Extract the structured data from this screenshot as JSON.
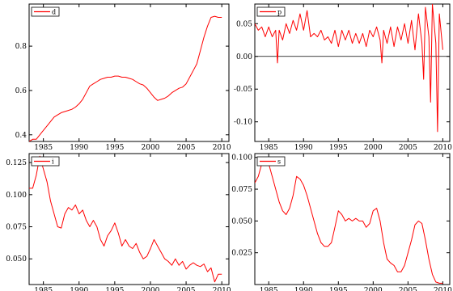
{
  "chart_data": [
    {
      "type": "line",
      "legend": "d",
      "xlim": [
        1983,
        2011
      ],
      "ylim": [
        0.37,
        0.99
      ],
      "xticks": [
        1985,
        1990,
        1995,
        2000,
        2005,
        2010
      ],
      "xtick_labels": [
        "1985",
        "1990",
        "1995",
        "2000",
        "2005",
        "2010"
      ],
      "yticks": [
        0.4,
        0.6,
        0.8
      ],
      "ytick_labels": [
        "0.4",
        "0.6",
        "0.8"
      ],
      "zero_line": false,
      "series": [
        {
          "x": [
            1983.0,
            1983.5,
            1984.0,
            1984.5,
            1985.0,
            1985.5,
            1986.0,
            1986.5,
            1987.0,
            1987.5,
            1988.0,
            1988.5,
            1989.0,
            1989.5,
            1990.0,
            1990.5,
            1991.0,
            1991.5,
            1992.0,
            1992.5,
            1993.0,
            1993.5,
            1994.0,
            1994.5,
            1995.0,
            1995.5,
            1996.0,
            1996.5,
            1997.0,
            1997.5,
            1998.0,
            1998.5,
            1999.0,
            1999.5,
            2000.0,
            2000.5,
            2001.0,
            2001.5,
            2002.0,
            2002.5,
            2003.0,
            2003.5,
            2004.0,
            2004.5,
            2005.0,
            2005.5,
            2006.0,
            2006.5,
            2007.0,
            2007.5,
            2008.0,
            2008.5,
            2009.0,
            2009.5,
            2010.0
          ],
          "y": [
            0.37,
            0.38,
            0.38,
            0.4,
            0.42,
            0.44,
            0.46,
            0.48,
            0.49,
            0.5,
            0.505,
            0.51,
            0.515,
            0.525,
            0.54,
            0.56,
            0.59,
            0.62,
            0.63,
            0.64,
            0.65,
            0.655,
            0.66,
            0.66,
            0.665,
            0.665,
            0.66,
            0.66,
            0.655,
            0.65,
            0.64,
            0.63,
            0.625,
            0.61,
            0.59,
            0.57,
            0.555,
            0.56,
            0.565,
            0.575,
            0.59,
            0.6,
            0.61,
            0.615,
            0.63,
            0.66,
            0.69,
            0.72,
            0.78,
            0.84,
            0.89,
            0.93,
            0.935,
            0.93,
            0.93
          ]
        }
      ]
    },
    {
      "type": "line",
      "legend": "p",
      "xlim": [
        1983,
        2011
      ],
      "ylim": [
        -0.13,
        0.08
      ],
      "xticks": [
        1985,
        1990,
        1995,
        2000,
        2005,
        2010
      ],
      "xtick_labels": [
        "1985",
        "1990",
        "1995",
        "2000",
        "2005",
        "2010"
      ],
      "yticks": [
        -0.1,
        -0.05,
        0.0,
        0.05
      ],
      "ytick_labels": [
        "-0.10",
        "-0.05",
        "0.00",
        "0.05"
      ],
      "zero_line": true,
      "series": [
        {
          "x": [
            1983.0,
            1983.5,
            1984.0,
            1984.5,
            1985.0,
            1985.5,
            1986.0,
            1986.25,
            1986.5,
            1987.0,
            1987.5,
            1988.0,
            1988.5,
            1989.0,
            1989.5,
            1990.0,
            1990.5,
            1991.0,
            1991.5,
            1992.0,
            1992.5,
            1993.0,
            1993.5,
            1994.0,
            1994.5,
            1995.0,
            1995.5,
            1996.0,
            1996.5,
            1997.0,
            1997.5,
            1998.0,
            1998.5,
            1999.0,
            1999.5,
            2000.0,
            2000.5,
            2001.0,
            2001.25,
            2001.5,
            2002.0,
            2002.5,
            2003.0,
            2003.5,
            2004.0,
            2004.5,
            2005.0,
            2005.5,
            2006.0,
            2006.5,
            2007.0,
            2007.25,
            2007.5,
            2008.0,
            2008.25,
            2008.5,
            2009.0,
            2009.25,
            2009.5,
            2010.0
          ],
          "y": [
            0.05,
            0.04,
            0.045,
            0.03,
            0.045,
            0.03,
            0.04,
            -0.01,
            0.04,
            0.025,
            0.05,
            0.035,
            0.055,
            0.04,
            0.065,
            0.04,
            0.07,
            0.03,
            0.035,
            0.03,
            0.04,
            0.025,
            0.03,
            0.02,
            0.04,
            0.015,
            0.04,
            0.025,
            0.04,
            0.02,
            0.035,
            0.02,
            0.035,
            0.015,
            0.04,
            0.03,
            0.045,
            0.025,
            -0.01,
            0.04,
            0.02,
            0.045,
            0.015,
            0.045,
            0.025,
            0.05,
            0.02,
            0.055,
            0.01,
            0.065,
            0.02,
            -0.035,
            0.075,
            0.03,
            -0.07,
            0.08,
            0.02,
            -0.115,
            0.065,
            0.01
          ]
        }
      ]
    },
    {
      "type": "line",
      "legend": "i",
      "xlim": [
        1983,
        2011
      ],
      "ylim": [
        0.03,
        0.132
      ],
      "xticks": [
        1985,
        1990,
        1995,
        2000,
        2005,
        2010
      ],
      "xtick_labels": [
        "1985",
        "1990",
        "1995",
        "2000",
        "2005",
        "2010"
      ],
      "yticks": [
        0.05,
        0.075,
        0.1,
        0.125
      ],
      "ytick_labels": [
        "0.050",
        "0.075",
        "0.100",
        "0.125"
      ],
      "zero_line": false,
      "series": [
        {
          "x": [
            1983.0,
            1983.5,
            1984.0,
            1984.5,
            1985.0,
            1985.5,
            1986.0,
            1986.5,
            1987.0,
            1987.5,
            1988.0,
            1988.5,
            1989.0,
            1989.5,
            1990.0,
            1990.5,
            1991.0,
            1991.5,
            1992.0,
            1992.5,
            1993.0,
            1993.5,
            1994.0,
            1994.5,
            1995.0,
            1995.5,
            1996.0,
            1996.5,
            1997.0,
            1997.5,
            1998.0,
            1998.5,
            1999.0,
            1999.5,
            2000.0,
            2000.5,
            2001.0,
            2001.5,
            2002.0,
            2002.5,
            2003.0,
            2003.5,
            2004.0,
            2004.5,
            2005.0,
            2005.5,
            2006.0,
            2006.5,
            2007.0,
            2007.5,
            2008.0,
            2008.5,
            2009.0,
            2009.5,
            2010.0
          ],
          "y": [
            0.105,
            0.105,
            0.115,
            0.13,
            0.12,
            0.11,
            0.095,
            0.085,
            0.075,
            0.074,
            0.085,
            0.09,
            0.088,
            0.092,
            0.085,
            0.088,
            0.08,
            0.075,
            0.08,
            0.075,
            0.065,
            0.06,
            0.068,
            0.072,
            0.078,
            0.07,
            0.06,
            0.065,
            0.06,
            0.058,
            0.062,
            0.055,
            0.05,
            0.052,
            0.058,
            0.065,
            0.06,
            0.055,
            0.05,
            0.048,
            0.045,
            0.05,
            0.045,
            0.048,
            0.042,
            0.045,
            0.047,
            0.045,
            0.044,
            0.046,
            0.04,
            0.043,
            0.032,
            0.038,
            0.038
          ]
        }
      ]
    },
    {
      "type": "line",
      "legend": "s",
      "xlim": [
        1983,
        2011
      ],
      "ylim": [
        0.0,
        0.103
      ],
      "xticks": [
        1985,
        1990,
        1995,
        2000,
        2005,
        2010
      ],
      "xtick_labels": [
        "1985",
        "1990",
        "1995",
        "2000",
        "2005",
        "2010"
      ],
      "yticks": [
        0.025,
        0.05,
        0.075,
        0.1
      ],
      "ytick_labels": [
        "0.025",
        "0.050",
        "0.075",
        "0.100"
      ],
      "zero_line": false,
      "series": [
        {
          "x": [
            1983.0,
            1983.5,
            1984.0,
            1984.5,
            1985.0,
            1985.5,
            1986.0,
            1986.5,
            1987.0,
            1987.5,
            1988.0,
            1988.5,
            1989.0,
            1989.5,
            1990.0,
            1990.5,
            1991.0,
            1991.5,
            1992.0,
            1992.5,
            1993.0,
            1993.5,
            1994.0,
            1994.5,
            1995.0,
            1995.5,
            1996.0,
            1996.5,
            1997.0,
            1997.5,
            1998.0,
            1998.5,
            1999.0,
            1999.5,
            2000.0,
            2000.5,
            2001.0,
            2001.5,
            2002.0,
            2002.5,
            2003.0,
            2003.5,
            2004.0,
            2004.5,
            2005.0,
            2005.5,
            2006.0,
            2006.5,
            2007.0,
            2007.5,
            2008.0,
            2008.5,
            2009.0,
            2009.5,
            2010.0
          ],
          "y": [
            0.08,
            0.085,
            0.095,
            0.1,
            0.095,
            0.085,
            0.075,
            0.065,
            0.058,
            0.055,
            0.06,
            0.07,
            0.085,
            0.083,
            0.078,
            0.07,
            0.06,
            0.05,
            0.04,
            0.033,
            0.03,
            0.03,
            0.033,
            0.045,
            0.058,
            0.055,
            0.05,
            0.052,
            0.05,
            0.052,
            0.05,
            0.05,
            0.045,
            0.048,
            0.058,
            0.06,
            0.05,
            0.033,
            0.02,
            0.017,
            0.015,
            0.01,
            0.01,
            0.015,
            0.025,
            0.035,
            0.047,
            0.05,
            0.048,
            0.035,
            0.02,
            0.008,
            0.002,
            0.001,
            0.001
          ]
        }
      ]
    }
  ]
}
